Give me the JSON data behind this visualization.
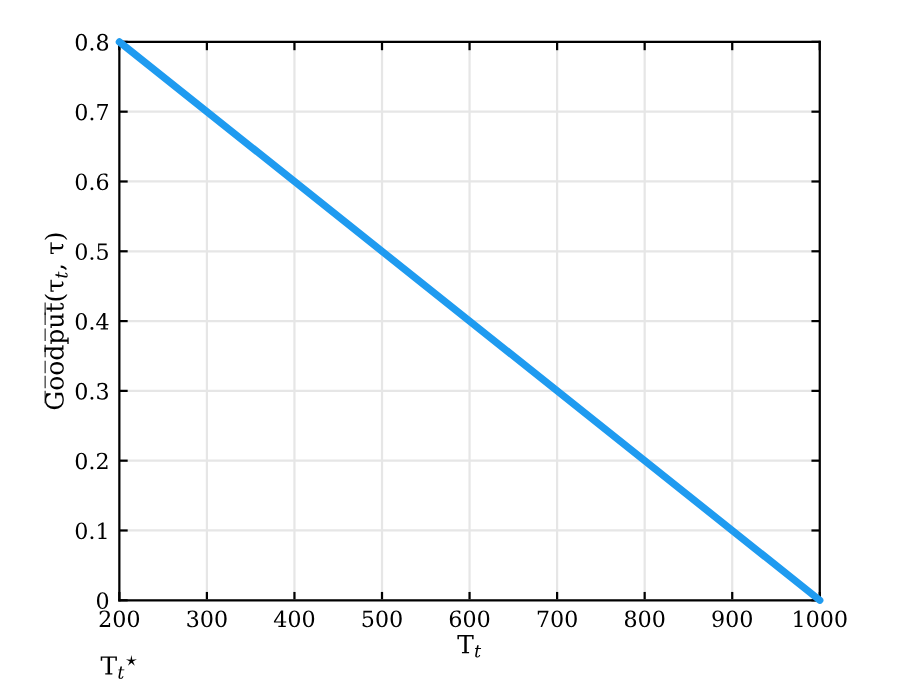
{
  "chart_data": {
    "type": "line",
    "xlabel": "T$_{t}$",
    "ylabel": "G̅o̅o̅d̅p̅u̅t̅(τ$_{t}$, τ)",
    "x": [
      200,
      1000
    ],
    "series": [
      {
        "color": "#1f9bf0",
        "values": [
          0.8,
          0
        ]
      }
    ],
    "xlim": [
      200,
      1000
    ],
    "xticks": [
      200,
      300,
      400,
      500,
      600,
      700,
      800,
      900,
      1000
    ],
    "ylim": [
      0,
      0.8
    ],
    "yticks": [
      0,
      0.1,
      0.2,
      0.3,
      0.4,
      0.5,
      0.6,
      0.7,
      0.8
    ],
    "grid": true,
    "marker": "none",
    "line_style": "solid",
    "annotations": [
      "T$_{t}$$^{⋆}$"
    ]
  }
}
